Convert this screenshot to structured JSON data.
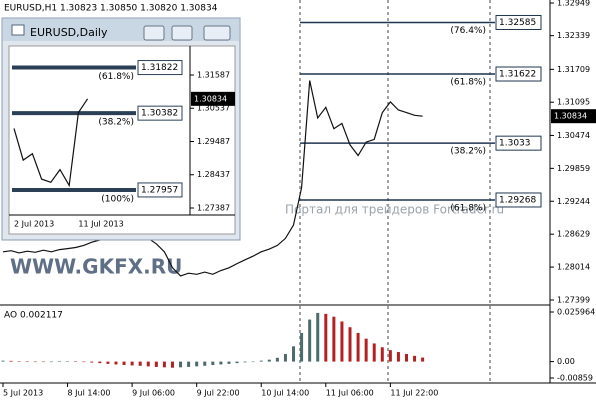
{
  "chart_data": [
    {
      "type": "line",
      "title": "EURUSD,H1  1.30823 1.30850 1.30820 1.30834",
      "categories": [
        "5 Jul 2013",
        null,
        null,
        null,
        null,
        null,
        null,
        null,
        "8 Jul 14:00",
        null,
        null,
        null,
        null,
        null,
        null,
        null,
        "9 Jul 06:00",
        null,
        null,
        null,
        null,
        null,
        null,
        null,
        "9 Jul 22:00",
        null,
        null,
        null,
        null,
        null,
        null,
        null,
        "10 Jul 14:00",
        null,
        null,
        null,
        null,
        null,
        null,
        null,
        "11 Jul 06:00",
        null,
        null,
        null,
        null,
        null,
        null,
        null,
        "11 Jul 22:00",
        null,
        null,
        null,
        null
      ],
      "values": [
        1.283,
        1.2832,
        1.2828,
        1.2831,
        1.2829,
        1.2833,
        1.283,
        1.2834,
        1.2836,
        1.2838,
        1.2842,
        1.2848,
        1.2852,
        1.2858,
        1.2856,
        1.286,
        1.2862,
        1.286,
        1.2855,
        1.2845,
        1.283,
        1.28,
        1.2785,
        1.279,
        1.2788,
        1.2792,
        1.2788,
        1.2795,
        1.28,
        1.2808,
        1.2815,
        1.2822,
        1.283,
        1.2835,
        1.2842,
        1.2855,
        1.288,
        1.295,
        1.315,
        1.308,
        1.31,
        1.306,
        1.307,
        1.303,
        1.301,
        1.3035,
        1.304,
        1.309,
        1.311,
        1.3095,
        1.309,
        1.3085,
        1.30834
      ],
      "color": "#111111",
      "ylim": [
        1.27399,
        1.32949
      ],
      "yticks": [
        1.32949,
        1.32339,
        1.31709,
        1.31095,
        1.30474,
        1.29859,
        1.29244,
        1.28629,
        1.28014,
        1.27399
      ],
      "levels": [
        {
          "label": "(76.4%)",
          "value": 1.32585
        },
        {
          "label": "(61.8%)",
          "value": 1.31622
        },
        {
          "label": "(38.2%)",
          "value": 1.3033
        },
        {
          "label": "(61.8%)",
          "value": 1.29268
        }
      ],
      "current": 1.30834,
      "annotations": [
        "WWW.GKFX.RU",
        "Портал для трейдеров Fortrader.ru"
      ]
    },
    {
      "type": "bar",
      "title": "AO 0.002117",
      "values": [
        0.0005,
        0.0004,
        0.0002,
        0.0001,
        -0.0001,
        -0.0002,
        -0.0001,
        0.0001,
        0.0002,
        0.0001,
        -0.0002,
        -0.0005,
        -0.0008,
        -0.0012,
        -0.0015,
        -0.0018,
        -0.002,
        -0.0022,
        -0.0025,
        -0.0028,
        -0.003,
        -0.0032,
        -0.003,
        -0.0028,
        -0.0025,
        -0.0022,
        -0.0018,
        -0.0015,
        -0.0012,
        -0.0008,
        -0.0004,
        0.0,
        0.0005,
        0.001,
        0.002,
        0.004,
        0.008,
        0.015,
        0.022,
        0.0255,
        0.025,
        0.0235,
        0.021,
        0.018,
        0.015,
        0.012,
        0.0095,
        0.0075,
        0.006,
        0.005,
        0.004,
        0.003,
        0.002117
      ],
      "up_color": "#4d6b6b",
      "down_color": "#b22222",
      "ylim": [
        -0.00859,
        0.025964
      ],
      "yticks": [
        0.025964,
        {
          "value": 0,
          "label": "0.00"
        },
        -0.00859
      ]
    },
    {
      "type": "line",
      "title": "EURUSD,Daily",
      "categories": [
        "2 Jul 2013",
        null,
        null,
        null,
        null,
        null,
        null,
        "11 Jul 2013",
        null
      ],
      "values": [
        1.299,
        1.289,
        1.291,
        1.283,
        1.282,
        1.286,
        1.281,
        1.304,
        1.30834
      ],
      "color": "#111111",
      "ylim": [
        1.27229,
        1.32313
      ],
      "yticks": [
        1.31587,
        1.30537,
        1.29487,
        1.28437,
        1.27387
      ],
      "levels": [
        {
          "label": "(61.8%)",
          "value": 1.31822
        },
        {
          "label": "(38.2%)",
          "value": 1.30382
        },
        {
          "label": "(100%)",
          "value": 1.27957
        }
      ],
      "current": 1.30834
    }
  ]
}
